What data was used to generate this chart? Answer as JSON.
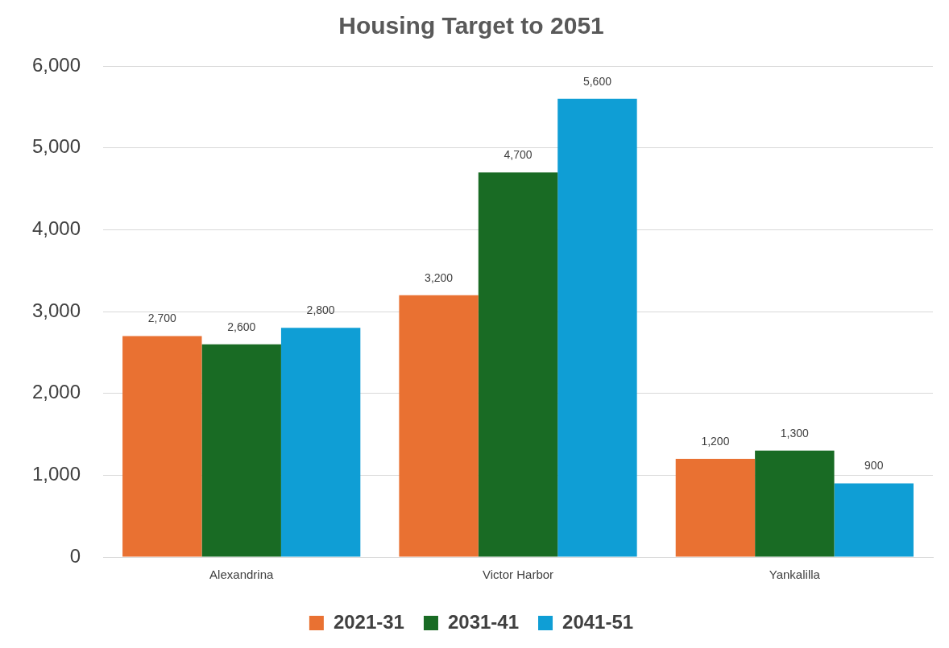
{
  "chart_data": {
    "type": "bar",
    "title": "Housing Target to 2051",
    "categories": [
      "Alexandrina",
      "Victor Harbor",
      "Yankalilla"
    ],
    "series": [
      {
        "name": "2021-31",
        "color": "#e97132",
        "values": [
          2700,
          3200,
          1200
        ],
        "value_labels": [
          "2,700",
          "3,200",
          "1,200"
        ]
      },
      {
        "name": "2031-41",
        "color": "#196b24",
        "values": [
          2600,
          4700,
          1300
        ],
        "value_labels": [
          "2,600",
          "4,700",
          "1,300"
        ]
      },
      {
        "name": "2041-51",
        "color": "#0f9ed5",
        "values": [
          2800,
          5600,
          900
        ],
        "value_labels": [
          "2,800",
          "5,600",
          "900"
        ]
      }
    ],
    "ylim": [
      0,
      6000
    ],
    "yticks": [
      {
        "value": 0,
        "label": "0"
      },
      {
        "value": 1000,
        "label": "1,000"
      },
      {
        "value": 2000,
        "label": "2,000"
      },
      {
        "value": 3000,
        "label": "3,000"
      },
      {
        "value": 4000,
        "label": "4,000"
      },
      {
        "value": 5000,
        "label": "5,000"
      },
      {
        "value": 6000,
        "label": "6,000"
      }
    ],
    "grid": "y",
    "legend": "bottom"
  }
}
